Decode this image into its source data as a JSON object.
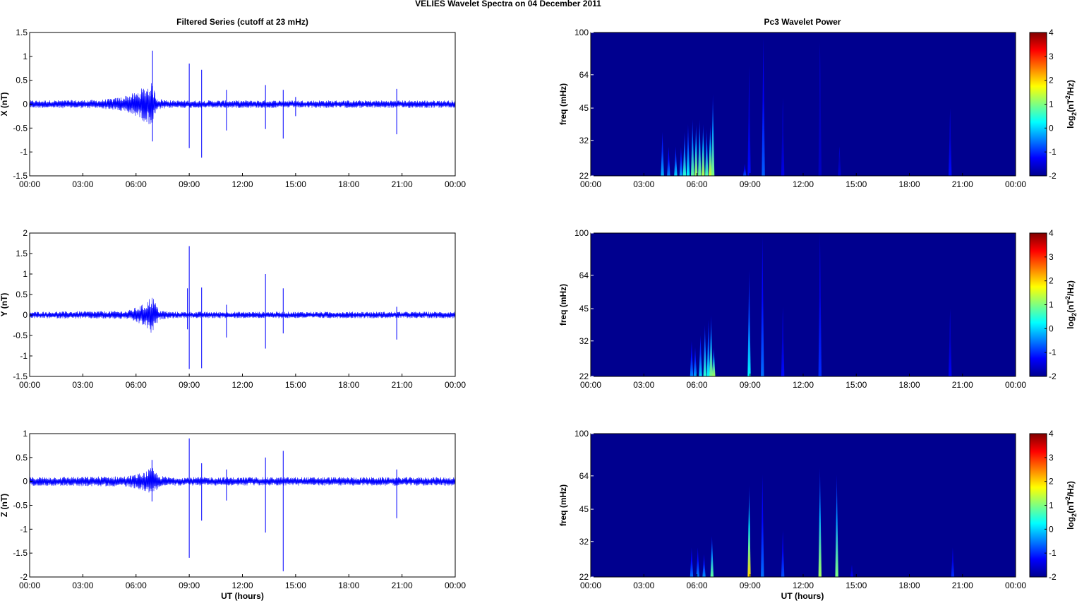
{
  "figure": {
    "title": "VELIES Wavelet Spectra on 04 December  2011",
    "left_title": "Filtered Series (cutoff at 23 mHz)",
    "right_title": "Pc3 Wavelet Power",
    "xlabel": "UT (hours)"
  },
  "colors": {
    "trace": "#0000ff",
    "spectrogram_background": "#00008f",
    "axes": "#000000",
    "colormap": "jet"
  },
  "chart_data": [
    {
      "type": "line",
      "series_component": "X",
      "ylabel": "X (nT)",
      "xlim": [
        0,
        24
      ],
      "ylim": [
        -1.5,
        1.5
      ],
      "x_ticks": [
        "00:00",
        "03:00",
        "06:00",
        "09:00",
        "12:00",
        "15:00",
        "18:00",
        "21:00",
        "00:00"
      ],
      "y_ticks": [
        "-1.5",
        "-1",
        "-0.5",
        "0",
        "0.5",
        "1",
        "1.5"
      ],
      "y_tick_values": [
        -1.5,
        -1,
        -0.5,
        0,
        0.5,
        1,
        1.5
      ],
      "noise_amplitude": 0.08,
      "envelope": [
        [
          0,
          0.08
        ],
        [
          4.0,
          0.09
        ],
        [
          5.0,
          0.14
        ],
        [
          6.0,
          0.25
        ],
        [
          6.5,
          0.38
        ],
        [
          6.9,
          0.45
        ],
        [
          7.2,
          0.12
        ],
        [
          8.0,
          0.08
        ],
        [
          24,
          0.08
        ]
      ],
      "spikes": [
        [
          6.93,
          1.12,
          -0.78
        ],
        [
          9.0,
          0.85,
          -0.92
        ],
        [
          9.7,
          0.72,
          -1.12
        ],
        [
          11.1,
          0.3,
          -0.55
        ],
        [
          13.3,
          0.4,
          -0.52
        ],
        [
          14.3,
          0.3,
          -0.72
        ],
        [
          15.0,
          0.15,
          -0.25
        ],
        [
          20.7,
          0.32,
          -0.63
        ]
      ]
    },
    {
      "type": "line",
      "series_component": "Y",
      "ylabel": "Y (nT)",
      "xlim": [
        0,
        24
      ],
      "ylim": [
        -1.5,
        2
      ],
      "x_ticks": [
        "00:00",
        "03:00",
        "06:00",
        "09:00",
        "12:00",
        "15:00",
        "18:00",
        "21:00",
        "00:00"
      ],
      "y_ticks": [
        "-1.5",
        "-1",
        "-0.5",
        "0",
        "0.5",
        "1",
        "1.5",
        "2"
      ],
      "y_tick_values": [
        -1.5,
        -1,
        -0.5,
        0,
        0.5,
        1,
        1.5,
        2
      ],
      "noise_amplitude": 0.08,
      "envelope": [
        [
          0,
          0.08
        ],
        [
          5.5,
          0.1
        ],
        [
          6.5,
          0.28
        ],
        [
          6.9,
          0.5
        ],
        [
          7.3,
          0.12
        ],
        [
          8.0,
          0.08
        ],
        [
          24,
          0.08
        ]
      ],
      "spikes": [
        [
          8.9,
          0.65,
          -0.35
        ],
        [
          9.0,
          1.68,
          -1.32
        ],
        [
          9.7,
          0.67,
          -1.3
        ],
        [
          11.1,
          0.25,
          -0.55
        ],
        [
          13.3,
          1.0,
          -0.82
        ],
        [
          14.3,
          0.65,
          -0.45
        ],
        [
          20.7,
          0.2,
          -0.6
        ]
      ]
    },
    {
      "type": "line",
      "series_component": "Z",
      "ylabel": "Z (nT)",
      "xlim": [
        0,
        24
      ],
      "ylim": [
        -2,
        1
      ],
      "x_ticks": [
        "00:00",
        "03:00",
        "06:00",
        "09:00",
        "12:00",
        "15:00",
        "18:00",
        "21:00",
        "00:00"
      ],
      "y_ticks": [
        "-2",
        "-1.5",
        "-1",
        "-0.5",
        "0",
        "0.5",
        "1"
      ],
      "y_tick_values": [
        -2,
        -1.5,
        -1,
        -0.5,
        0,
        0.5,
        1
      ],
      "noise_amplitude": 0.09,
      "envelope": [
        [
          0,
          0.09
        ],
        [
          5.5,
          0.11
        ],
        [
          6.5,
          0.2
        ],
        [
          6.9,
          0.3
        ],
        [
          7.3,
          0.12
        ],
        [
          8,
          0.09
        ],
        [
          24,
          0.09
        ]
      ],
      "spikes": [
        [
          6.9,
          0.45,
          -0.42
        ],
        [
          9.0,
          0.9,
          -1.6
        ],
        [
          9.7,
          0.38,
          -0.82
        ],
        [
          11.1,
          0.25,
          -0.4
        ],
        [
          13.3,
          0.5,
          -1.07
        ],
        [
          14.3,
          0.64,
          -1.88
        ],
        [
          20.7,
          0.25,
          -0.77
        ]
      ]
    },
    {
      "type": "heatmap",
      "ylabel": "freq (mHz)",
      "colorbar_label": "log2(nT2/Hz)",
      "xlim": [
        0,
        24
      ],
      "ylim": [
        22,
        100
      ],
      "clim": [
        -2,
        4
      ],
      "x_ticks": [
        "00:00",
        "03:00",
        "06:00",
        "09:00",
        "12:00",
        "15:00",
        "18:00",
        "21:00",
        "00:00"
      ],
      "y_ticks": [
        "22",
        "32",
        "45",
        "64",
        "100"
      ],
      "y_tick_values": [
        22,
        32,
        45,
        64,
        100
      ],
      "colorbar_ticks": [
        "-2",
        "-1",
        "0",
        "1",
        "2",
        "3",
        "4"
      ],
      "colorbar_tick_values": [
        -2,
        -1,
        0,
        1,
        2,
        3,
        4
      ],
      "streaks": [
        [
          4.05,
          35,
          -0.2
        ],
        [
          4.4,
          30,
          -0.5
        ],
        [
          4.8,
          30,
          0.0
        ],
        [
          5.1,
          30,
          -0.3
        ],
        [
          5.3,
          35,
          0.5
        ],
        [
          5.5,
          38,
          0.2
        ],
        [
          5.75,
          40,
          0.8
        ],
        [
          5.95,
          38,
          1.2
        ],
        [
          6.15,
          40,
          0.9
        ],
        [
          6.35,
          38,
          1.3
        ],
        [
          6.55,
          36,
          0.7
        ],
        [
          6.75,
          38,
          1.5
        ],
        [
          6.9,
          52,
          1.0
        ],
        [
          8.7,
          25,
          -0.8
        ],
        [
          8.95,
          70,
          -1.2
        ],
        [
          9.75,
          95,
          -0.7
        ],
        [
          10.85,
          50,
          -1.4
        ],
        [
          12.95,
          90,
          -1.6
        ],
        [
          14.05,
          30,
          -1.5
        ],
        [
          20.3,
          45,
          -1.2
        ]
      ]
    },
    {
      "type": "heatmap",
      "ylabel": "freq (mHz)",
      "colorbar_label": "log2(nT2/Hz)",
      "xlim": [
        0,
        24
      ],
      "ylim": [
        22,
        100
      ],
      "clim": [
        -2,
        4
      ],
      "x_ticks": [
        "00:00",
        "03:00",
        "06:00",
        "09:00",
        "12:00",
        "15:00",
        "18:00",
        "21:00",
        "00:00"
      ],
      "y_ticks": [
        "22",
        "32",
        "45",
        "64",
        "100"
      ],
      "y_tick_values": [
        22,
        32,
        45,
        64,
        100
      ],
      "colorbar_ticks": [
        "-2",
        "-1",
        "0",
        "1",
        "2",
        "3",
        "4"
      ],
      "colorbar_tick_values": [
        -2,
        -1,
        0,
        1,
        2,
        3,
        4
      ],
      "streaks": [
        [
          5.7,
          32,
          -0.5
        ],
        [
          5.9,
          30,
          -0.3
        ],
        [
          6.2,
          34,
          0.0
        ],
        [
          6.45,
          38,
          0.5
        ],
        [
          6.65,
          40,
          0.3
        ],
        [
          6.8,
          42,
          1.0
        ],
        [
          6.95,
          30,
          1.2
        ],
        [
          8.95,
          68,
          0.2
        ],
        [
          9.7,
          97,
          -0.6
        ],
        [
          10.85,
          46,
          -1.2
        ],
        [
          12.95,
          100,
          -1.0
        ],
        [
          20.3,
          45,
          -1.3
        ]
      ]
    },
    {
      "type": "heatmap",
      "ylabel": "freq (mHz)",
      "colorbar_label": "log2(nT2/Hz)",
      "xlim": [
        0,
        24
      ],
      "ylim": [
        22,
        100
      ],
      "clim": [
        -2,
        4
      ],
      "x_ticks": [
        "00:00",
        "03:00",
        "06:00",
        "09:00",
        "12:00",
        "15:00",
        "18:00",
        "21:00",
        "00:00"
      ],
      "y_ticks": [
        "22",
        "32",
        "45",
        "64",
        "100"
      ],
      "y_tick_values": [
        22,
        32,
        45,
        64,
        100
      ],
      "colorbar_ticks": [
        "-2",
        "-1",
        "0",
        "1",
        "2",
        "3",
        "4"
      ],
      "colorbar_tick_values": [
        -2,
        -1,
        0,
        1,
        2,
        3,
        4
      ],
      "streaks": [
        [
          5.7,
          30,
          -0.6
        ],
        [
          6.05,
          30,
          -0.5
        ],
        [
          6.4,
          28,
          -0.4
        ],
        [
          6.85,
          34,
          0.8
        ],
        [
          8.95,
          58,
          2.0
        ],
        [
          9.7,
          65,
          -0.6
        ],
        [
          10.85,
          36,
          -0.8
        ],
        [
          12.95,
          70,
          1.2
        ],
        [
          13.9,
          65,
          1.0
        ],
        [
          14.75,
          25,
          -1.3
        ],
        [
          20.45,
          30,
          -1.0
        ]
      ]
    }
  ]
}
